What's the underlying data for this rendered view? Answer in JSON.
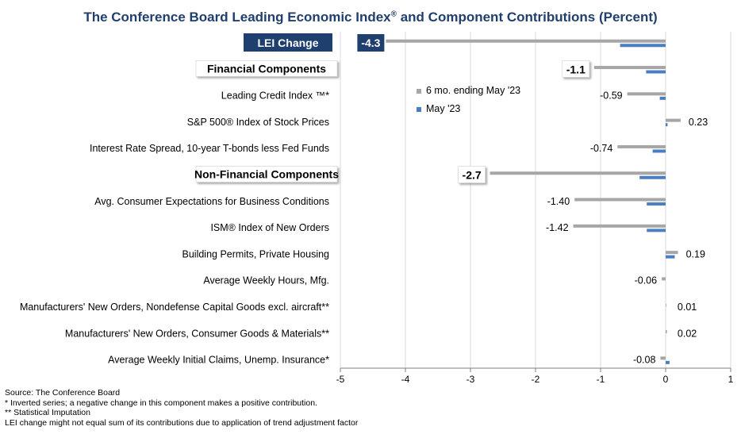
{
  "title_main": "The Conference Board Leading Economic Index",
  "title_reg": "®",
  "title_rest": " and Component Contributions (Percent)",
  "colors": {
    "six_month": "#a6a6a6",
    "month": "#4a7ec3",
    "lei_badge": "#1f3f6e",
    "title": "#1f3f6e",
    "gridline": "#d9d9d9"
  },
  "legend": [
    {
      "label": "6 mo. ending May '23",
      "color": "#a6a6a6"
    },
    {
      "label": "May '23",
      "color": "#4a7ec3"
    }
  ],
  "chart_data": {
    "type": "bar",
    "orientation": "horizontal",
    "title": "The Conference Board Leading Economic Index® and Component Contributions (Percent)",
    "xlim": [
      -5,
      1
    ],
    "xticks": [
      "-5",
      "-4",
      "-3",
      "-2",
      "-1",
      "0",
      "1"
    ],
    "grid": "vertical",
    "legend_position": "upper-center",
    "series": [
      {
        "name": "6 mo. ending May '23",
        "color": "#a6a6a6"
      },
      {
        "name": "May '23",
        "color": "#4a7ec3"
      }
    ],
    "rows": [
      {
        "label": "LEI Change",
        "style": "lei",
        "six_month": -4.3,
        "month": -0.7,
        "value_label": "-4.3"
      },
      {
        "label": "Financial Components",
        "style": "group",
        "six_month": -1.1,
        "month": -0.3,
        "value_label": "-1.1"
      },
      {
        "label": "Leading Credit Index ™*",
        "style": "item",
        "six_month": -0.59,
        "month": -0.09,
        "value_label": "-0.59"
      },
      {
        "label": "S&P 500® Index of Stock Prices",
        "style": "item",
        "six_month": 0.23,
        "month": 0.03,
        "value_label": "0.23"
      },
      {
        "label": "Interest Rate Spread, 10-year T-bonds less Fed Funds",
        "style": "item",
        "six_month": -0.74,
        "month": -0.2,
        "value_label": "-0.74"
      },
      {
        "label": "Non-Financial Components",
        "style": "group",
        "six_month": -2.7,
        "month": -0.4,
        "value_label": "-2.7"
      },
      {
        "label": "Avg. Consumer Expectations for Business Conditions",
        "style": "item",
        "six_month": -1.4,
        "month": -0.29,
        "value_label": "-1.40"
      },
      {
        "label": "ISM® Index of New Orders",
        "style": "item",
        "six_month": -1.42,
        "month": -0.29,
        "value_label": "-1.42"
      },
      {
        "label": "Building Permits, Private Housing",
        "style": "item",
        "six_month": 0.19,
        "month": 0.14,
        "value_label": "0.19"
      },
      {
        "label": "Average Weekly Hours, Mfg.",
        "style": "item",
        "six_month": -0.06,
        "month": 0.0,
        "value_label": "-0.06"
      },
      {
        "label": "Manufacturers' New Orders, Nondefense Capital Goods excl. aircraft**",
        "style": "item",
        "six_month": 0.01,
        "month": 0.0,
        "value_label": "0.01"
      },
      {
        "label": "Manufacturers' New Orders, Consumer Goods & Materials**",
        "style": "item",
        "six_month": 0.02,
        "month": 0.0,
        "value_label": "0.02"
      },
      {
        "label": "Average Weekly Initial Claims, Unemp. Insurance*",
        "style": "item",
        "six_month": -0.08,
        "month": 0.06,
        "value_label": "-0.08"
      }
    ]
  },
  "footnotes": [
    "Source: The Conference Board",
    "*  Inverted series; a negative change in this component makes a positive contribution.",
    "** Statistical Imputation",
    "LEI change might not equal sum of    its contributions due to application of trend adjustment factor"
  ]
}
